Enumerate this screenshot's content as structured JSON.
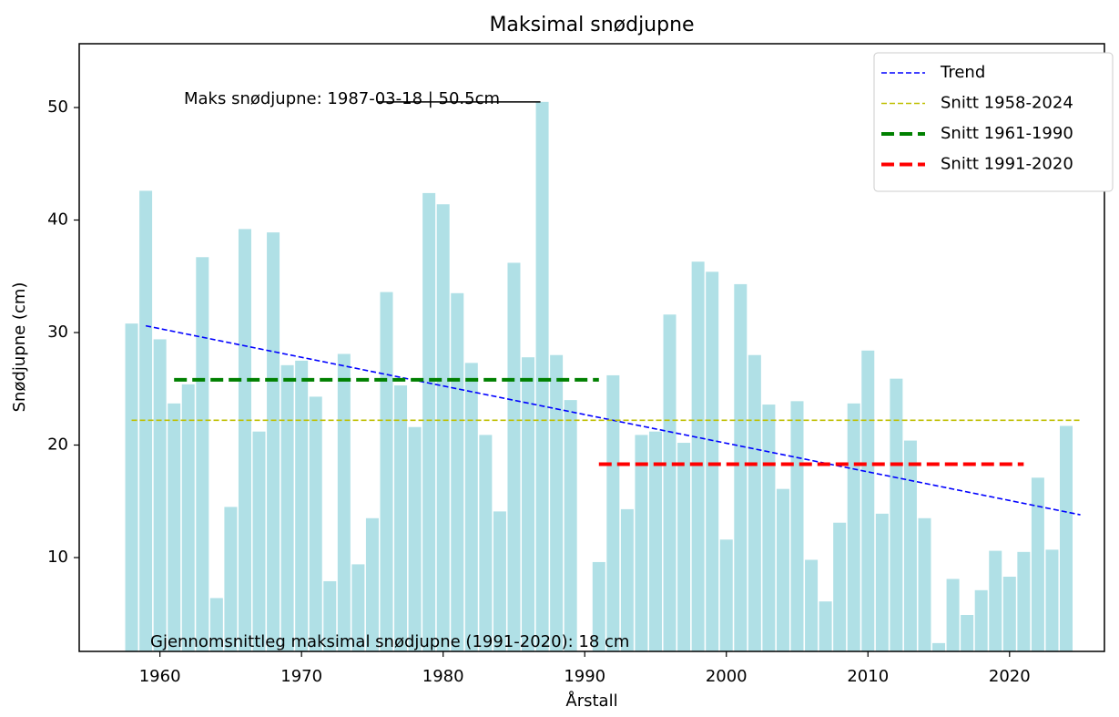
{
  "chart_data": {
    "type": "bar",
    "title": "Maksimal snødjupne",
    "xlabel": "Årstall",
    "ylabel": "Snødjupne (cm)",
    "x": [
      1958,
      1959,
      1960,
      1961,
      1962,
      1963,
      1964,
      1965,
      1966,
      1967,
      1968,
      1969,
      1970,
      1971,
      1972,
      1973,
      1974,
      1975,
      1976,
      1977,
      1978,
      1979,
      1980,
      1981,
      1982,
      1983,
      1984,
      1985,
      1986,
      1987,
      1988,
      1989,
      1990,
      1991,
      1992,
      1993,
      1994,
      1995,
      1996,
      1997,
      1998,
      1999,
      2000,
      2001,
      2002,
      2003,
      2004,
      2005,
      2006,
      2007,
      2008,
      2009,
      2010,
      2011,
      2012,
      2013,
      2014,
      2015,
      2016,
      2017,
      2018,
      2019,
      2020,
      2021,
      2022,
      2023,
      2024
    ],
    "values": [
      30.8,
      42.6,
      29.4,
      23.7,
      25.4,
      36.7,
      6.4,
      14.5,
      39.2,
      21.2,
      38.9,
      27.1,
      27.5,
      24.3,
      7.9,
      28.1,
      9.4,
      13.5,
      33.6,
      25.3,
      21.6,
      42.4,
      41.4,
      33.5,
      27.3,
      20.9,
      14.1,
      36.2,
      27.8,
      50.5,
      28.0,
      24.0,
      null,
      9.6,
      26.2,
      14.3,
      20.9,
      21.2,
      31.6,
      20.2,
      36.3,
      35.4,
      11.6,
      34.3,
      28.0,
      23.6,
      16.1,
      23.9,
      9.8,
      6.1,
      13.1,
      23.7,
      28.4,
      13.9,
      25.9,
      20.4,
      13.5,
      2.4,
      8.1,
      4.9,
      7.1,
      10.6,
      8.3,
      10.5,
      17.1,
      10.7,
      21.7
    ],
    "color": "#b0e0e6",
    "lines": [
      {
        "name": "Trend",
        "color": "#0000ff",
        "style": "thin",
        "x": [
          1959,
          2025
        ],
        "values": [
          30.6,
          13.8
        ]
      },
      {
        "name": "Snitt 1958-2024",
        "color": "#bfbf00",
        "style": "thin",
        "x": [
          1958,
          2025
        ],
        "values": [
          22.2,
          22.2
        ]
      },
      {
        "name": "Snitt 1961-1990",
        "color": "#008000",
        "style": "thick",
        "x": [
          1961,
          1991
        ],
        "values": [
          25.8,
          25.8
        ]
      },
      {
        "name": "Snitt 1991-2020",
        "color": "#ff0000",
        "style": "thick",
        "x": [
          1991,
          2021
        ],
        "values": [
          18.3,
          18.3
        ]
      }
    ],
    "annotations": [
      "Maks snødjupne: 1987-03-18 | 50.5cm",
      "Gjennomsnittleg maksimal snødjupne (1991-2020):  18 cm"
    ],
    "xlim": [
      1954.3,
      2026.7
    ],
    "xticks": [
      1960,
      1970,
      1980,
      1990,
      2000,
      2010,
      2020
    ],
    "ylim": [
      1.66,
      55.67
    ],
    "yticks": [
      10,
      20,
      30,
      40,
      50
    ],
    "legend": "upper right"
  }
}
